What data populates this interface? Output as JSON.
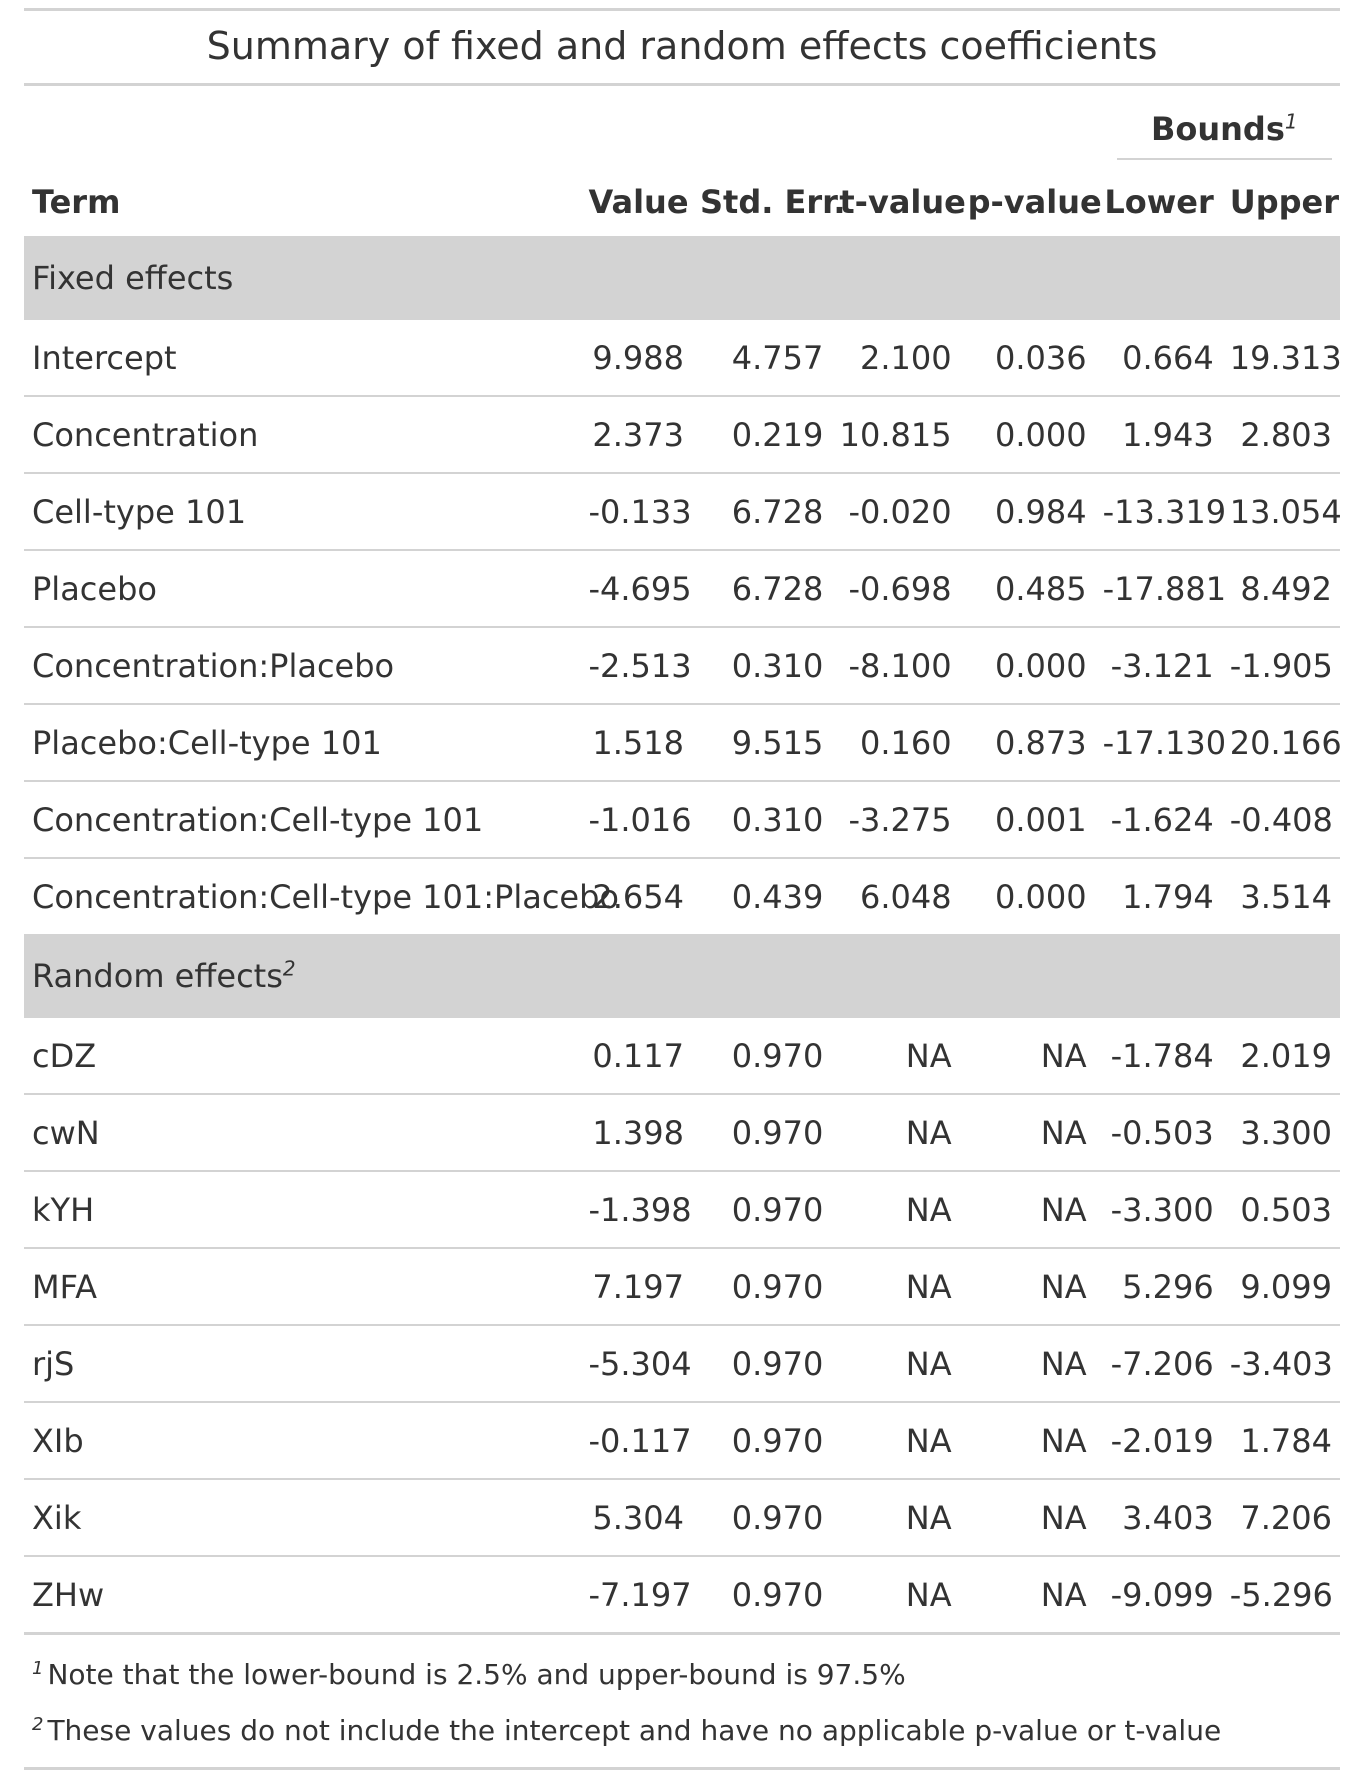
{
  "title": "Summary of fixed and random effects coefficients",
  "spanner": {
    "label": "Bounds",
    "mark": "1"
  },
  "columns": {
    "term": "Term",
    "value": "Value",
    "stderr": "Std. Err.",
    "tvalue": "t-value",
    "pvalue": "p-value",
    "lower": "Lower",
    "upper": "Upper"
  },
  "groups": [
    {
      "label": "Fixed effects",
      "mark": "",
      "rows": [
        {
          "term": "Intercept",
          "value": "9.988",
          "stderr": "4.757",
          "tvalue": "2.100",
          "pvalue": "0.036",
          "lower": "0.664",
          "upper": "19.313"
        },
        {
          "term": "Concentration",
          "value": "2.373",
          "stderr": "0.219",
          "tvalue": "10.815",
          "pvalue": "0.000",
          "lower": "1.943",
          "upper": "2.803"
        },
        {
          "term": "Cell-type 101",
          "value": "-0.133",
          "stderr": "6.728",
          "tvalue": "-0.020",
          "pvalue": "0.984",
          "lower": "-13.319",
          "upper": "13.054"
        },
        {
          "term": "Placebo",
          "value": "-4.695",
          "stderr": "6.728",
          "tvalue": "-0.698",
          "pvalue": "0.485",
          "lower": "-17.881",
          "upper": "8.492"
        },
        {
          "term": "Concentration:Placebo",
          "value": "-2.513",
          "stderr": "0.310",
          "tvalue": "-8.100",
          "pvalue": "0.000",
          "lower": "-3.121",
          "upper": "-1.905"
        },
        {
          "term": "Placebo:Cell-type 101",
          "value": "1.518",
          "stderr": "9.515",
          "tvalue": "0.160",
          "pvalue": "0.873",
          "lower": "-17.130",
          "upper": "20.166"
        },
        {
          "term": "Concentration:Cell-type 101",
          "value": "-1.016",
          "stderr": "0.310",
          "tvalue": "-3.275",
          "pvalue": "0.001",
          "lower": "-1.624",
          "upper": "-0.408"
        },
        {
          "term": "Concentration:Cell-type 101:Placebo",
          "value": "2.654",
          "stderr": "0.439",
          "tvalue": "6.048",
          "pvalue": "0.000",
          "lower": "1.794",
          "upper": "3.514"
        }
      ]
    },
    {
      "label": "Random effects",
      "mark": "2",
      "rows": [
        {
          "term": "cDZ",
          "value": "0.117",
          "stderr": "0.970",
          "tvalue": "NA",
          "pvalue": "NA",
          "lower": "-1.784",
          "upper": "2.019"
        },
        {
          "term": "cwN",
          "value": "1.398",
          "stderr": "0.970",
          "tvalue": "NA",
          "pvalue": "NA",
          "lower": "-0.503",
          "upper": "3.300"
        },
        {
          "term": "kYH",
          "value": "-1.398",
          "stderr": "0.970",
          "tvalue": "NA",
          "pvalue": "NA",
          "lower": "-3.300",
          "upper": "0.503"
        },
        {
          "term": "MFA",
          "value": "7.197",
          "stderr": "0.970",
          "tvalue": "NA",
          "pvalue": "NA",
          "lower": "5.296",
          "upper": "9.099"
        },
        {
          "term": "rjS",
          "value": "-5.304",
          "stderr": "0.970",
          "tvalue": "NA",
          "pvalue": "NA",
          "lower": "-7.206",
          "upper": "-3.403"
        },
        {
          "term": "XIb",
          "value": "-0.117",
          "stderr": "0.970",
          "tvalue": "NA",
          "pvalue": "NA",
          "lower": "-2.019",
          "upper": "1.784"
        },
        {
          "term": "Xik",
          "value": "5.304",
          "stderr": "0.970",
          "tvalue": "NA",
          "pvalue": "NA",
          "lower": "3.403",
          "upper": "7.206"
        },
        {
          "term": "ZHw",
          "value": "-7.197",
          "stderr": "0.970",
          "tvalue": "NA",
          "pvalue": "NA",
          "lower": "-9.099",
          "upper": "-5.296"
        }
      ]
    }
  ],
  "footnotes": [
    {
      "mark": "1",
      "text": "Note that the lower-bound is 2.5% and upper-bound is 97.5%"
    },
    {
      "mark": "2",
      "text": "These values do not include the intercept and have no applicable p-value or t-value"
    }
  ]
}
